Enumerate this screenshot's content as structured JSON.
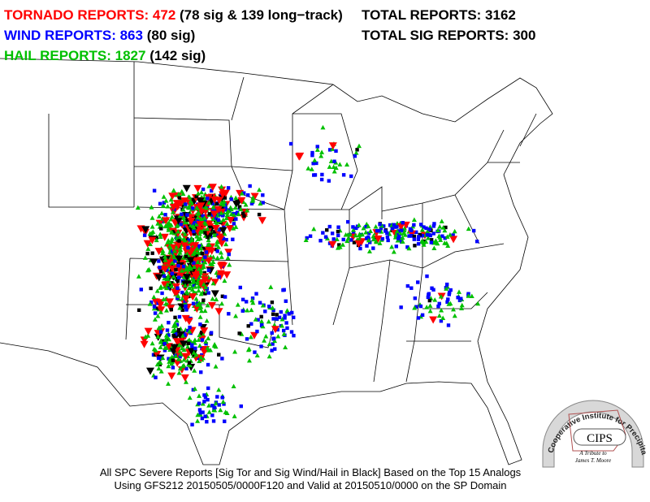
{
  "header": {
    "tornado": "TORNADO REPORTS: 472",
    "tornado_detail": "(78 sig & 139 long−track)",
    "wind": "WIND REPORTS: 863",
    "wind_detail": "(80 sig)",
    "hail": "HAIL REPORTS: 1827",
    "hail_detail": "(142 sig)",
    "total": "TOTAL REPORTS: 3162",
    "total_sig": "TOTAL SIG REPORTS: 300"
  },
  "footer": {
    "line1": "All SPC Severe Reports [Sig Tor and Sig Wind/Hail in Black] Based on the Top 15 Analogs",
    "line2": "Using GFS212 20150505/0000F120 and Valid at 20150510/0000 on the SP Domain"
  },
  "logo": {
    "arc_text": "Cooperative Institute for Precipitation Systems",
    "name": "CIPS",
    "tribute1": "A Tribute to",
    "tribute2": "James T. Moore"
  }
}
